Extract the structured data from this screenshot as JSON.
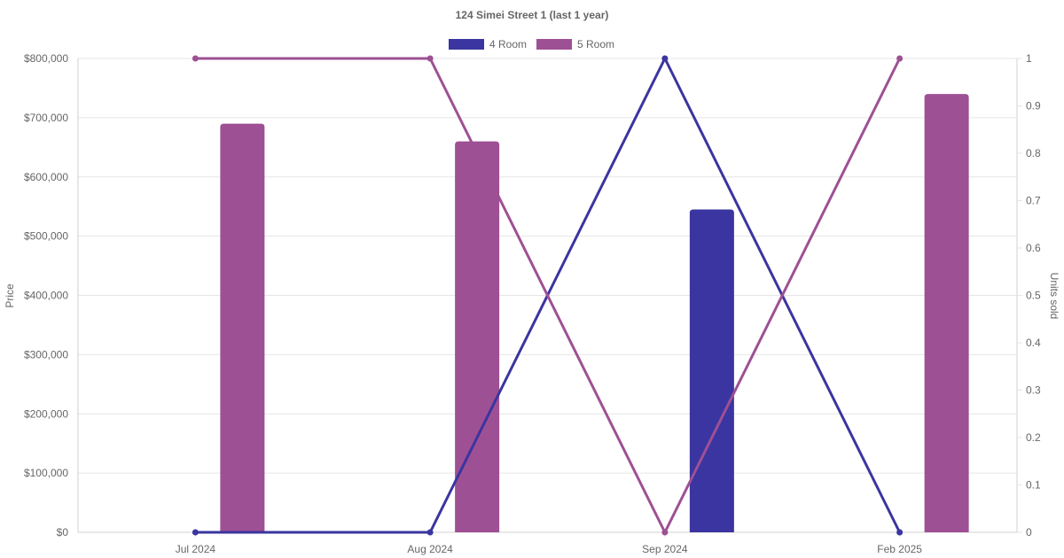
{
  "chart_data": {
    "type": "bar",
    "title": "124 Simei Street 1 (last 1 year)",
    "categories": [
      "Jul 2024",
      "Aug 2024",
      "Sep 2024",
      "Feb 2025"
    ],
    "y_left": {
      "label": "Price",
      "ylim": [
        0,
        800000
      ],
      "ticks": [
        "$0",
        "$100,000",
        "$200,000",
        "$300,000",
        "$400,000",
        "$500,000",
        "$600,000",
        "$700,000",
        "$800,000"
      ]
    },
    "y_right": {
      "label": "Units sold",
      "ylim": [
        0,
        1
      ],
      "ticks": [
        "0",
        "0.1",
        "0.2",
        "0.3",
        "0.4",
        "0.5",
        "0.6",
        "0.7",
        "0.8",
        "0.9",
        "1"
      ]
    },
    "series": [
      {
        "name": "4 Room",
        "color": "#3a35a0",
        "price": [
          null,
          null,
          545000,
          null
        ],
        "units_sold": [
          0,
          0,
          1,
          0
        ]
      },
      {
        "name": "5 Room",
        "color": "#9e5094",
        "price": [
          690000,
          660000,
          null,
          740000
        ],
        "units_sold": [
          1,
          1,
          0,
          1
        ]
      }
    ],
    "grid": true,
    "legend": "top-center"
  }
}
